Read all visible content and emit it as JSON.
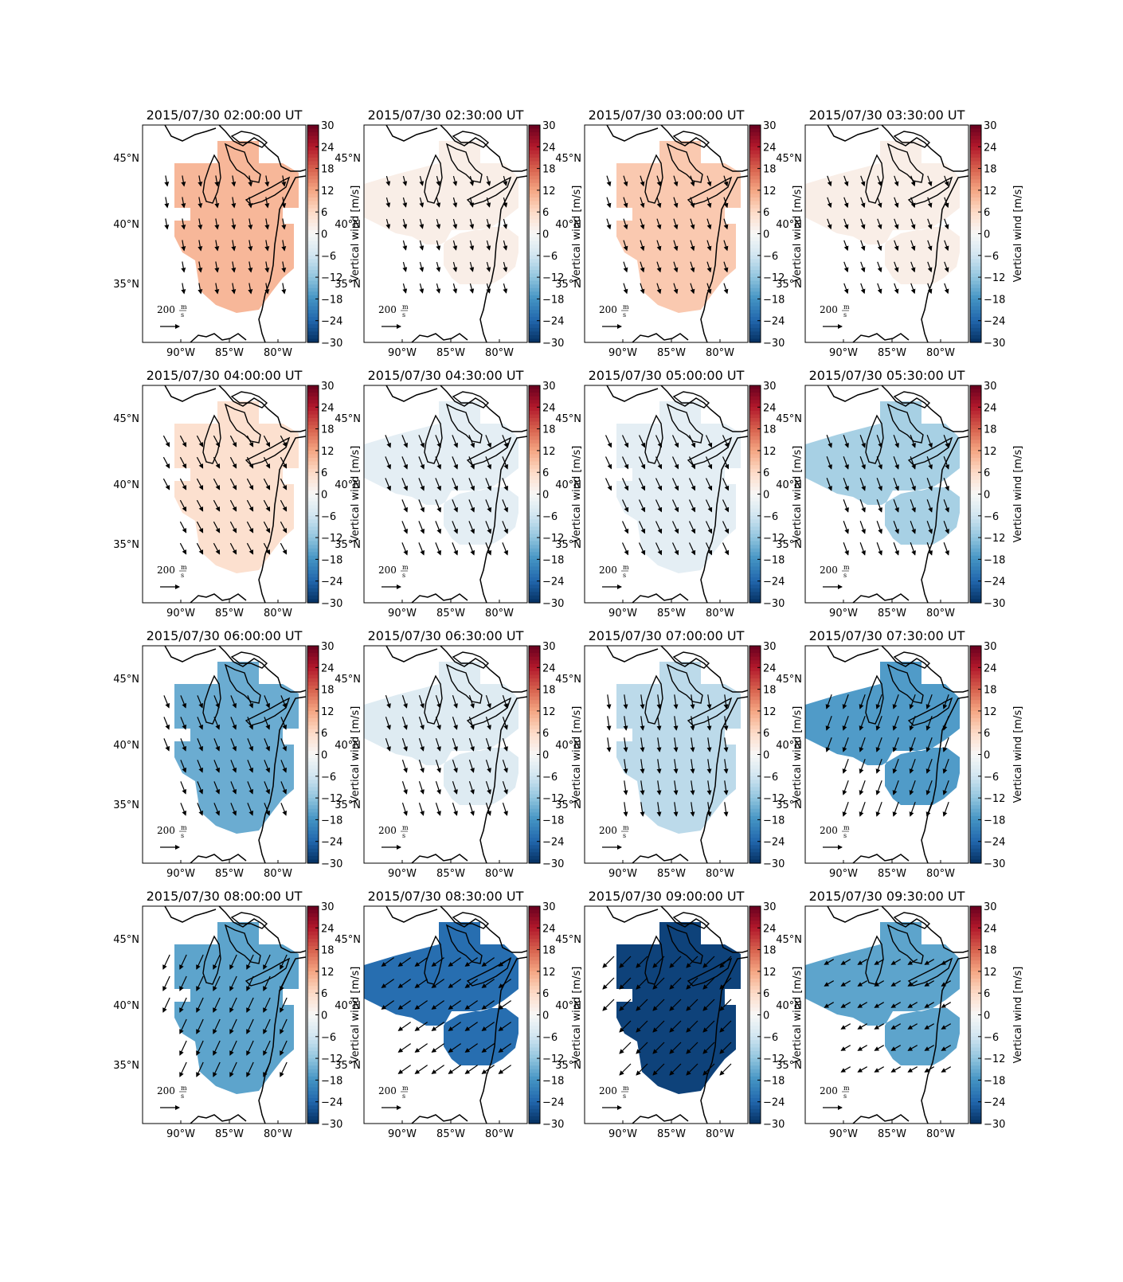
{
  "chart_data": {
    "type": "heatmap",
    "panel_titles": [
      "2015/07/30 02:00:00 UT",
      "2015/07/30 02:30:00 UT",
      "2015/07/30 03:00:00 UT",
      "2015/07/30 03:30:00 UT",
      "2015/07/30 04:00:00 UT",
      "2015/07/30 04:30:00 UT",
      "2015/07/30 05:00:00 UT",
      "2015/07/30 05:30:00 UT",
      "2015/07/30 06:00:00 UT",
      "2015/07/30 06:30:00 UT",
      "2015/07/30 07:00:00 UT",
      "2015/07/30 07:30:00 UT",
      "2015/07/30 08:00:00 UT",
      "2015/07/30 08:30:00 UT",
      "2015/07/30 09:00:00 UT",
      "2015/07/30 09:30:00 UT"
    ],
    "vertical_wind_mps": [
      10,
      2,
      8,
      2,
      5,
      -3,
      -3,
      -10,
      -15,
      -4,
      -8,
      -17,
      -16,
      -23,
      -28,
      -16
    ],
    "wind_vectors": [
      {
        "dir_deg": 170,
        "len": 0.6
      },
      {
        "dir_deg": 165,
        "len": 0.55
      },
      {
        "dir_deg": 162,
        "len": 0.6
      },
      {
        "dir_deg": 160,
        "len": 0.6
      },
      {
        "dir_deg": 152,
        "len": 0.7
      },
      {
        "dir_deg": 158,
        "len": 0.75
      },
      {
        "dir_deg": 155,
        "len": 0.75
      },
      {
        "dir_deg": 160,
        "len": 0.75
      },
      {
        "dir_deg": 158,
        "len": 0.75
      },
      {
        "dir_deg": 162,
        "len": 0.75
      },
      {
        "dir_deg": 172,
        "len": 0.8
      },
      {
        "dir_deg": 200,
        "len": 0.85
      },
      {
        "dir_deg": 205,
        "len": 0.9
      },
      {
        "dir_deg": 235,
        "len": 0.85
      },
      {
        "dir_deg": 225,
        "len": 0.9
      },
      {
        "dir_deg": 240,
        "len": 0.6
      }
    ],
    "colorbar": {
      "label": "Vertical wind [m/s]",
      "ticks": [
        "30",
        "24",
        "18",
        "12",
        "6",
        "0",
        "−6",
        "−12",
        "−18",
        "−24",
        "−30"
      ],
      "range": [
        -30,
        30
      ],
      "colormap": "RdBu_r"
    },
    "x_ticks": [
      "90°W",
      "85°W",
      "80°W"
    ],
    "y_ticks": [
      "45°N",
      "40°N",
      "35°N"
    ],
    "reference_arrow": {
      "value": "200",
      "numerator": "m",
      "denominator": "s"
    }
  }
}
